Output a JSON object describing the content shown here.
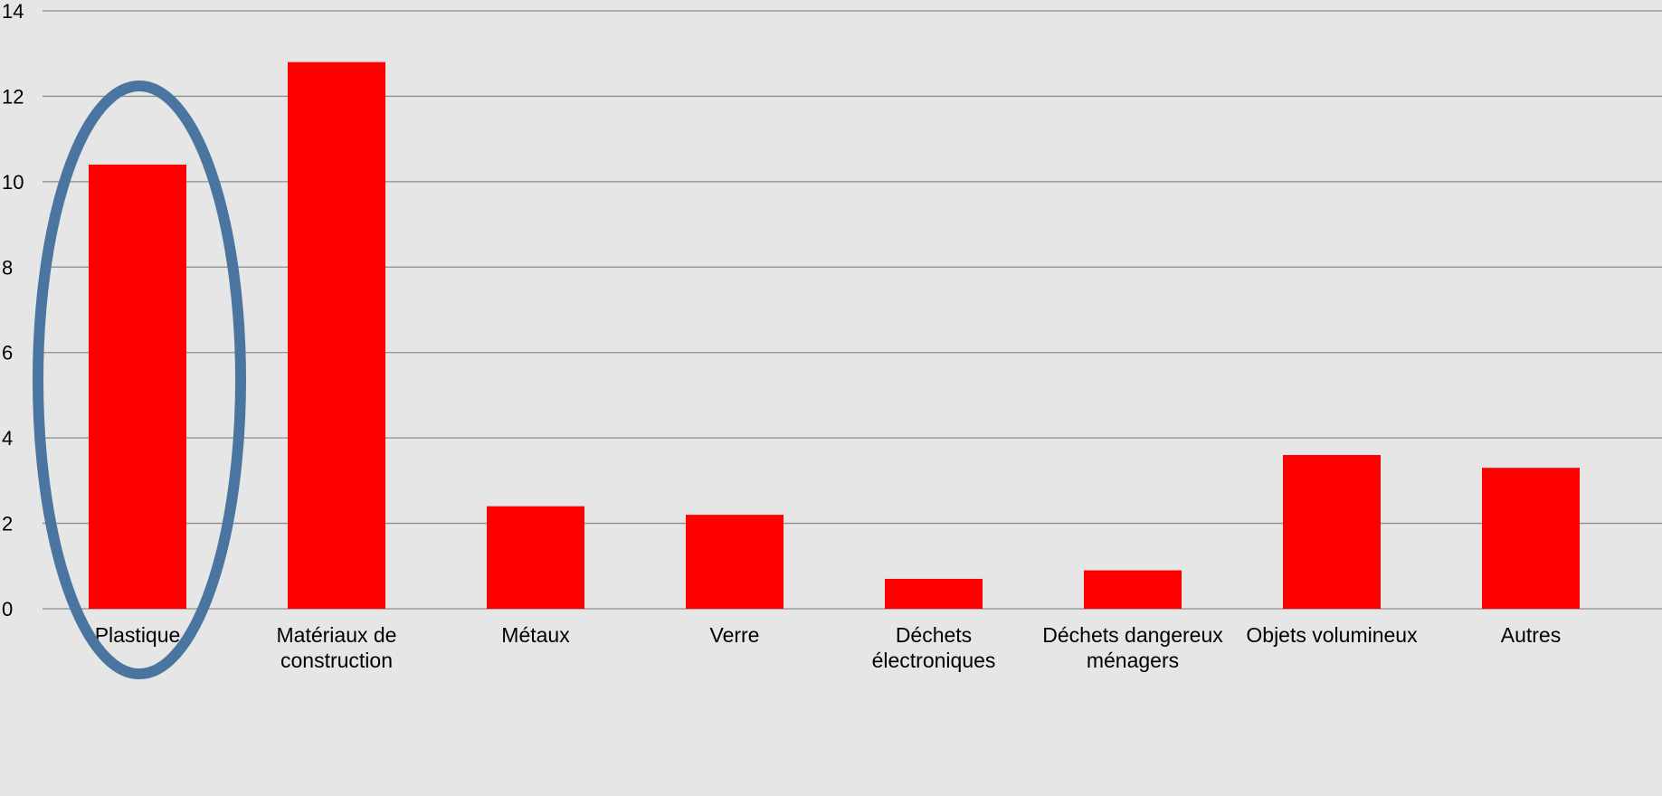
{
  "chart_data": {
    "type": "bar",
    "title": "",
    "xlabel": "",
    "ylabel": "",
    "categories": [
      [
        "Plastique"
      ],
      [
        "Matériaux de",
        "construction"
      ],
      [
        "Métaux"
      ],
      [
        "Verre"
      ],
      [
        "Déchets",
        "électroniques"
      ],
      [
        "Déchets dangereux",
        "ménagers"
      ],
      [
        "Objets volumineux"
      ],
      [
        "Autres"
      ]
    ],
    "values": [
      10.4,
      12.8,
      2.4,
      2.2,
      0.7,
      0.9,
      3.6,
      3.3
    ],
    "ylim": [
      0,
      14
    ],
    "yticks": [
      0,
      2,
      4,
      6,
      8,
      10,
      12,
      14
    ],
    "grid": true,
    "legend": "none",
    "highlight": {
      "category_index": 0,
      "shape": "ellipse",
      "color": "#4a75a0"
    },
    "colors": {
      "bar": "#ff0000",
      "background": "#e6e6e6",
      "grid": "#8c8c8c"
    }
  }
}
